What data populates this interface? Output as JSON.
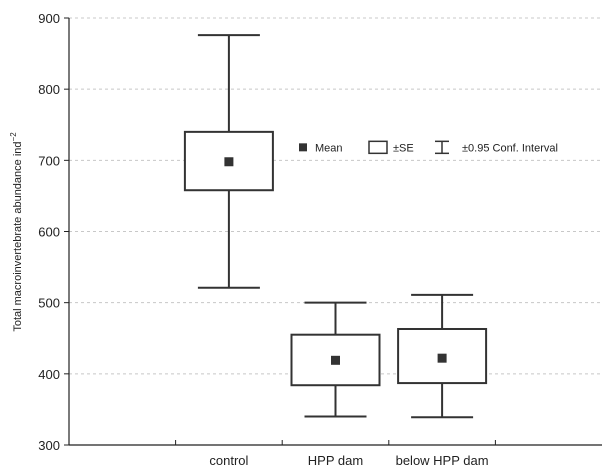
{
  "chart_data": {
    "type": "box",
    "title": "",
    "xlabel": "",
    "ylabel": "Total macroinvertebrate abundance ind",
    "ylabel_sup": "−2",
    "ylim": [
      300,
      900
    ],
    "yticks": [
      300,
      400,
      500,
      600,
      700,
      800,
      900
    ],
    "grid": true,
    "categories": [
      "control",
      "HPP dam",
      "below HPP dam"
    ],
    "boxes": [
      {
        "category": "control",
        "mean": 698,
        "se_low": 658,
        "se_high": 740,
        "ci_low": 521,
        "ci_high": 876
      },
      {
        "category": "HPP dam",
        "mean": 419,
        "se_low": 384,
        "se_high": 455,
        "ci_low": 340,
        "ci_high": 500
      },
      {
        "category": "below HPP dam",
        "mean": 422,
        "se_low": 387,
        "se_high": 463,
        "ci_low": 339,
        "ci_high": 511
      }
    ],
    "legend": {
      "position": "top-right",
      "items": [
        {
          "symbol": "mean",
          "label": "Mean"
        },
        {
          "symbol": "box",
          "label": "±SE"
        },
        {
          "symbol": "whisker",
          "label": "±0.95 Conf. Interval"
        }
      ]
    }
  }
}
